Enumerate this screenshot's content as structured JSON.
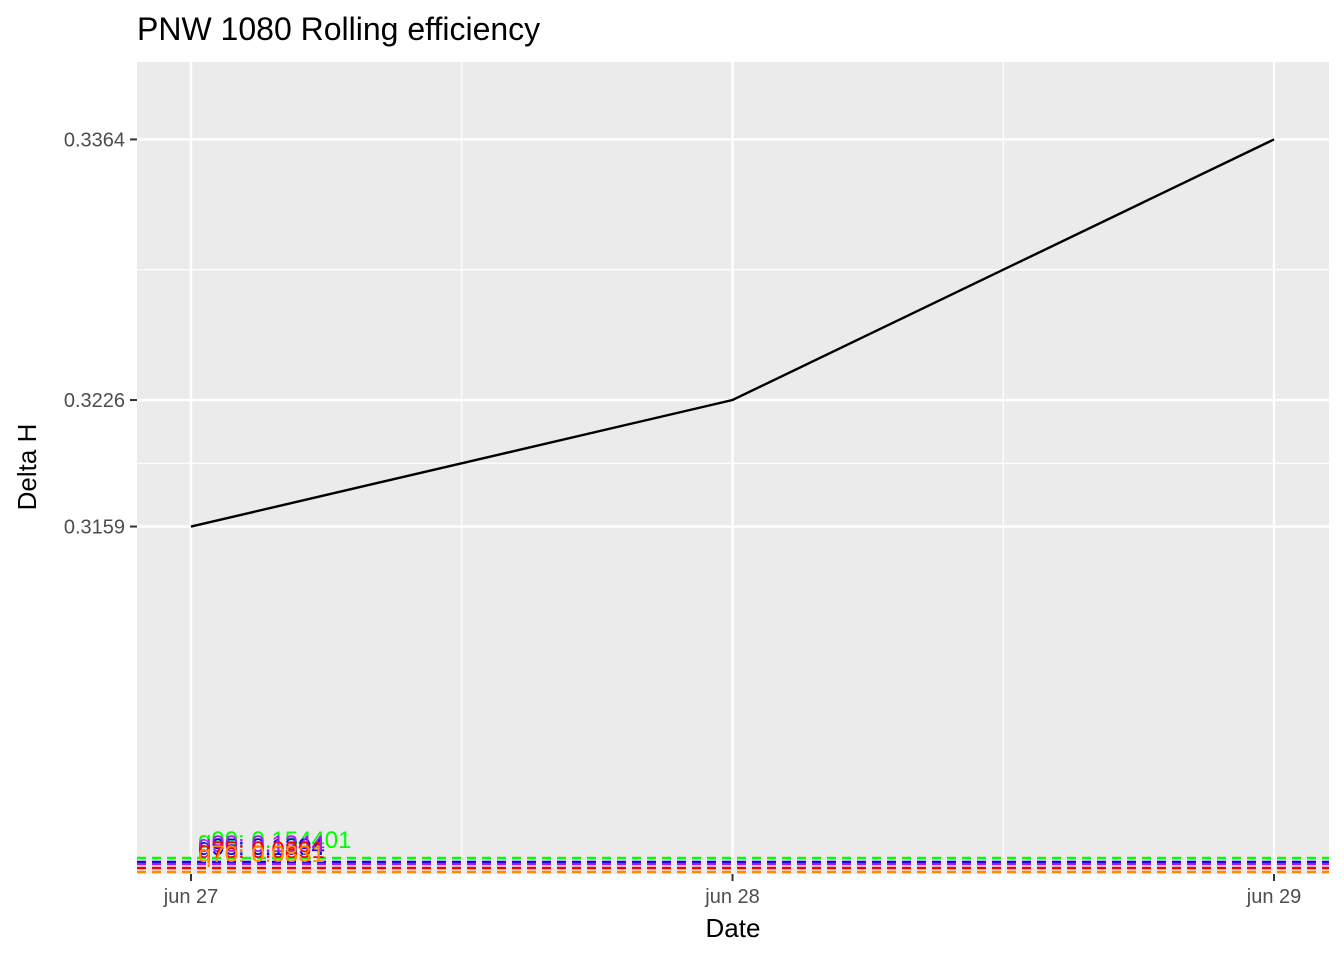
{
  "chart_data": {
    "type": "line",
    "title": "PNW 1080 Rolling efficiency",
    "xlabel": "Date",
    "ylabel": "Delta H",
    "x_ticks": [
      "jun 27",
      "jun 28",
      "jun 29"
    ],
    "y_ticks": [
      "0.3159",
      "0.3226",
      "0.3364"
    ],
    "series": [
      {
        "color": "#000000",
        "points": [
          {
            "x": "jun 27",
            "y": 0.3159
          },
          {
            "x": "jun 28",
            "y": 0.3226
          },
          {
            "x": "jun 29",
            "y": 0.3364
          }
        ]
      }
    ],
    "reference_lines": [
      {
        "label": "q99: 0.154401",
        "color": "#00ff00",
        "style": "dashed"
      },
      {
        "label": "q95: 0.1394",
        "color": "#0000ff",
        "style": "dashed"
      },
      {
        "label": "q90: 0.1344",
        "color": "#a020f0",
        "style": "dashed"
      },
      {
        "label": "q75: 0.0891",
        "color": "#ff0000",
        "style": "dashed"
      },
      {
        "label": "q70: 0.0831",
        "color": "#ff8c00",
        "style": "dashed"
      }
    ],
    "panel_background": "#ebebeb",
    "grid": true,
    "legend": "none"
  }
}
